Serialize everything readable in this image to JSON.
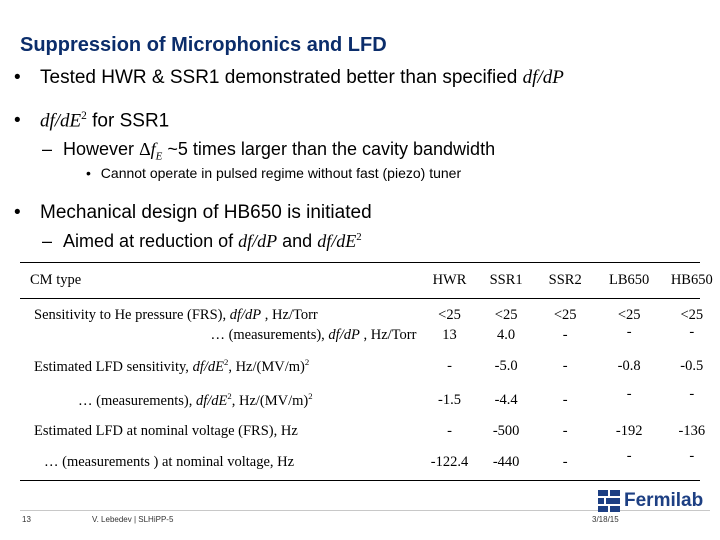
{
  "slide": {
    "title": "Suppression of Microphonics and LFD",
    "bullets": {
      "b1_bullet": "•",
      "b1_text": "Tested HWR & SSR1 demonstrated better than specified ",
      "b1_math": "df/dP",
      "b2_bullet": "•",
      "b2_math": "df/dE",
      "b2_sup": "2",
      "b2_text": " for SSR1",
      "b2_sub_dash": "–",
      "b2_sub_text1": "However ",
      "b2_sub_delta": "Δ",
      "b2_sub_f": "f",
      "b2_sub_sub": "E",
      "b2_sub_text2": " ~5 times larger than the cavity bandwidth",
      "b2_subsub_bullet": "•",
      "b2_subsub_text": "Cannot operate in pulsed regime without fast (piezo) tuner",
      "b3_bullet": "•",
      "b3_text": "Mechanical design of HB650 is initiated",
      "b3_sub_dash": "–",
      "b3_sub_text": "Aimed at reduction of ",
      "b3_sub_m1": "df/dP",
      "b3_sub_and": " and ",
      "b3_sub_m2": "df/dE",
      "b3_sub_sup": "2"
    },
    "table": {
      "header": [
        "CM type",
        "HWR",
        "SSR1",
        "SSR2",
        "LB650",
        "HB650"
      ],
      "r1_label_a": "Sensitivity to He pressure (FRS), ",
      "r1_label_b": "df/dP",
      "r1_label_c": " , Hz/Torr",
      "r1_sub_a": "… (measurements), ",
      "r1_sub_b": "df/dP",
      "r1_sub_c": " , Hz/Torr",
      "r1_vals": [
        "<25",
        "<25",
        "<25",
        "<25",
        "<25"
      ],
      "r1_meas": [
        "13",
        "4.0",
        "-",
        "-",
        "-"
      ],
      "r2_label_a": "Estimated LFD sensitivity, ",
      "r2_label_b": "df/dE",
      "r2_label_sup": "2",
      "r2_label_c": ", Hz/(MV/m)",
      "r2_label_sup2": "2",
      "r2_vals": [
        "-",
        "-5.0",
        "-",
        "-0.8",
        "-0.5"
      ],
      "r3_label_a": "… (measurements), ",
      "r3_label_b": "df/dE",
      "r3_label_sup": "2",
      "r3_label_c": ", Hz/(MV/m)",
      "r3_label_sup2": "2",
      "r3_vals": [
        "-1.5",
        "-4.4",
        "-",
        "-",
        "-"
      ],
      "r4_label": "Estimated LFD  at nominal voltage (FRS), Hz",
      "r4_vals": [
        "-",
        "-500",
        "-",
        "-192",
        "-136"
      ],
      "r5_label": "… (measurements ) at nominal voltage,  Hz",
      "r5_vals": [
        "-122.4",
        "-440",
        "-",
        "-",
        "-"
      ]
    },
    "footer": {
      "page": "13",
      "author": "V. Lebedev | SLHiPP-5",
      "date": "3/18/15",
      "logo": "Fermilab"
    },
    "colors": {
      "title": "#0b2d6b",
      "logo": "#1d3f83"
    }
  }
}
